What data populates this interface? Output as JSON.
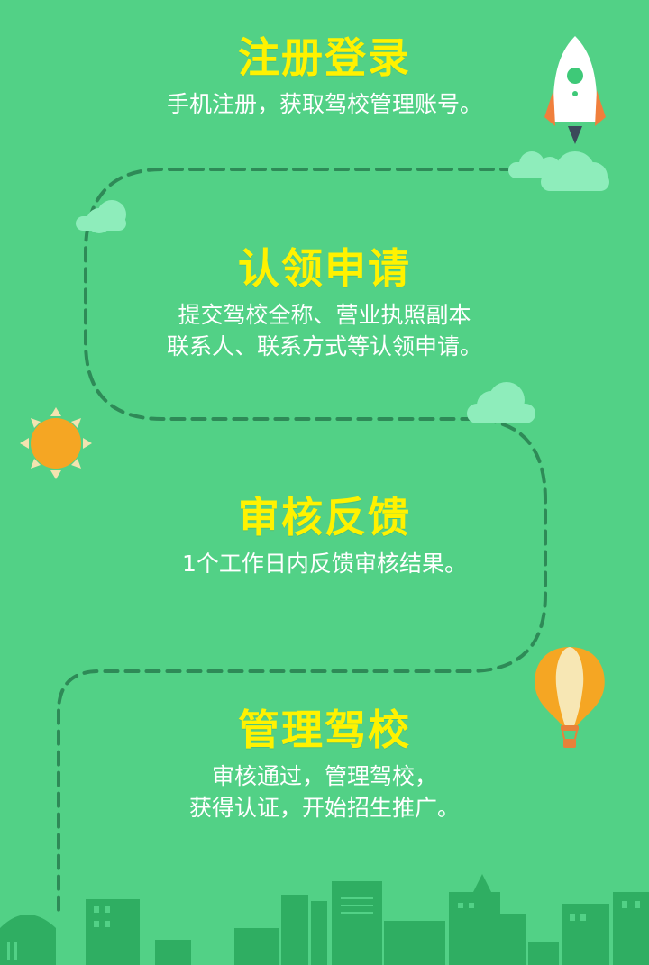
{
  "colors": {
    "background": "#52d186",
    "title": "#fff200",
    "text": "#ffffff",
    "path": "#2e8a57",
    "cloud": "#8eedbb",
    "sun": "#f5a623",
    "city": "#2fae62"
  },
  "steps": [
    {
      "title": "注册登录",
      "lines": [
        "手机注册，获取驾校管理账号。"
      ]
    },
    {
      "title": "认领申请",
      "lines": [
        "提交驾校全称、营业执照副本",
        "联系人、联系方式等认领申请。"
      ]
    },
    {
      "title": "审核反馈",
      "lines": [
        "1个工作日内反馈审核结果。"
      ]
    },
    {
      "title": "管理驾校",
      "lines": [
        "审核通过，管理驾校，",
        "获得认证，开始招生推广。"
      ]
    }
  ],
  "decorations": {
    "rocket": "rocket-icon",
    "sun": "sun-icon",
    "balloon": "hot-air-balloon-icon",
    "cloud": "cloud-icon",
    "city": "city-skyline"
  }
}
